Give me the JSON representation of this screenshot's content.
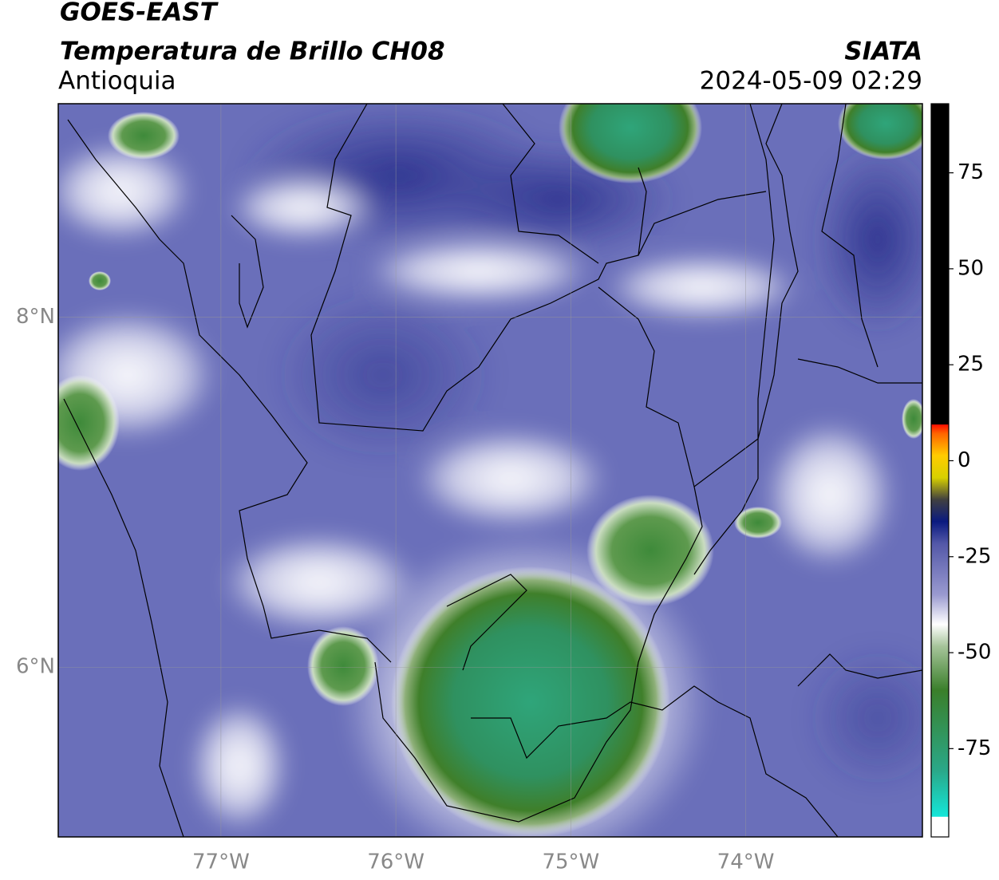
{
  "header": {
    "title": "GOES-EAST",
    "subtitle": "Temperatura de Brillo CH08",
    "region": "Antioquia",
    "source": "SIATA",
    "datetime": "2024-05-09 02:29"
  },
  "map": {
    "xlim": [
      -77.93,
      -72.99
    ],
    "ylim": [
      5.03,
      9.22
    ],
    "xticks": [
      {
        "value": -77,
        "label": "77°W"
      },
      {
        "value": -76,
        "label": "76°W"
      },
      {
        "value": -75,
        "label": "75°W"
      },
      {
        "value": -74,
        "label": "74°W"
      }
    ],
    "yticks": [
      {
        "value": 6,
        "label": "6°N"
      },
      {
        "value": 8,
        "label": "8°N"
      }
    ],
    "grid": true
  },
  "colorbar": {
    "lim": [
      -98,
      93
    ],
    "ticks": [
      -75,
      -50,
      -25,
      0,
      25,
      50,
      75
    ]
  }
}
